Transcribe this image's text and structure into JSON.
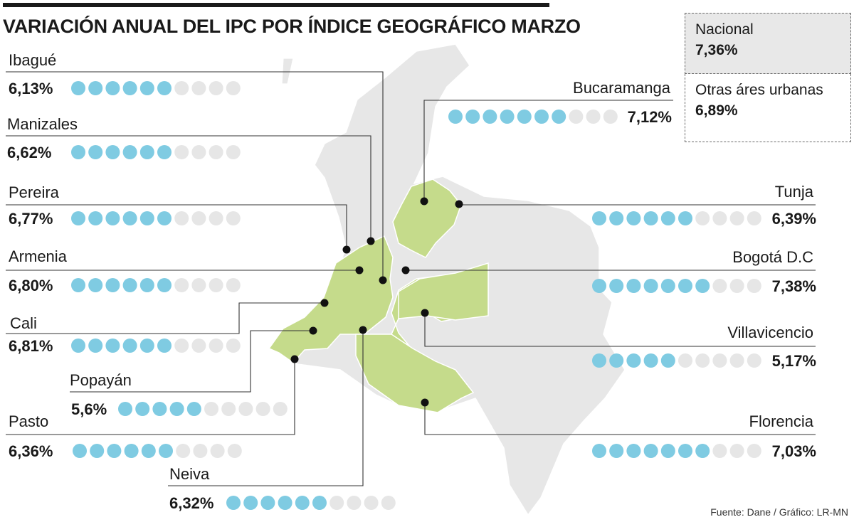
{
  "title": "VARIACIÓN ANUAL DEL IPC POR ÍNDICE GEOGRÁFICO MARZO",
  "source": "Fuente: Dane / Gráfico: LR-MN",
  "legend": {
    "nacional": {
      "label": "Nacional",
      "value": "7,36%"
    },
    "otras": {
      "label": "Otras áres urbanas",
      "value": "6,89%"
    }
  },
  "colors": {
    "dot_filled": "#7fcbe2",
    "dot_empty": "#e6e6e6",
    "map_highlight": "#c5db8b",
    "map_base": "#e7e7e7",
    "text": "#1a1a1a"
  },
  "chart_data": {
    "type": "dot-matrix",
    "dots_per_row": 10,
    "cities": [
      {
        "name": "Ibagué",
        "value": 6.13,
        "label": "6,13%",
        "filled": 6
      },
      {
        "name": "Manizales",
        "value": 6.62,
        "label": "6,62%",
        "filled": 6
      },
      {
        "name": "Pereira",
        "value": 6.77,
        "label": "6,77%",
        "filled": 6
      },
      {
        "name": "Armenia",
        "value": 6.8,
        "label": "6,80%",
        "filled": 6
      },
      {
        "name": "Cali",
        "value": 6.81,
        "label": "6,81%",
        "filled": 6
      },
      {
        "name": "Popayán",
        "value": 5.6,
        "label": "5,6%",
        "filled": 5
      },
      {
        "name": "Pasto",
        "value": 6.36,
        "label": "6,36%",
        "filled": 6
      },
      {
        "name": "Neiva",
        "value": 6.32,
        "label": "6,32%",
        "filled": 6
      },
      {
        "name": "Bucaramanga",
        "value": 7.12,
        "label": "7,12%",
        "filled": 7
      },
      {
        "name": "Tunja",
        "value": 6.39,
        "label": "6,39%",
        "filled": 6
      },
      {
        "name": "Bogotá D.C",
        "value": 7.38,
        "label": "7,38%",
        "filled": 7
      },
      {
        "name": "Villavicencio",
        "value": 5.17,
        "label": "5,17%",
        "filled": 5
      },
      {
        "name": "Florencia",
        "value": 7.03,
        "label": "7,03%",
        "filled": 7
      }
    ]
  }
}
